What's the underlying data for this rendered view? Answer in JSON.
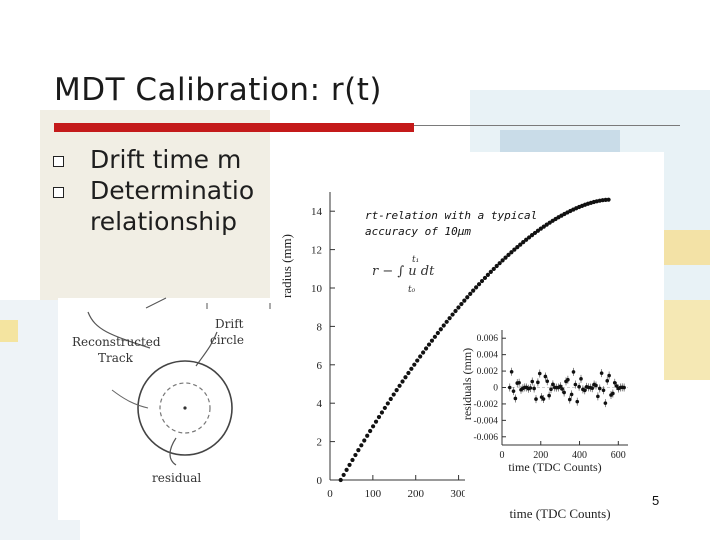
{
  "slide": {
    "title": "MDT Calibration: r(t)",
    "bullets": [
      {
        "text": "Drift time m"
      },
      {
        "text": "Determinatio",
        "continuation": "relationship"
      }
    ],
    "page_number": "5"
  },
  "diagram": {
    "reconstructed_track_label": [
      "Reconstructed",
      "Track"
    ],
    "drift_circle_label": [
      "Drift",
      "circle"
    ],
    "residual_label": "residual"
  },
  "chart_data": [
    {
      "type": "scatter",
      "title": "",
      "annotation": [
        "rt-relation with a typical",
        "accuracy of 10μm"
      ],
      "formula": "r − ∫ u dt",
      "formula_limits": {
        "upper": "t₁",
        "lower": "t₀"
      },
      "xlabel": "time (TDC Counts)",
      "ylabel": "radius (mm)",
      "xlim": [
        0,
        700
      ],
      "ylim": [
        0,
        15
      ],
      "xticks": [
        "0",
        "100",
        "200",
        "300",
        "400",
        "500",
        "600"
      ],
      "yticks": [
        "0",
        "2",
        "4",
        "6",
        "8",
        "10",
        "12",
        "14"
      ],
      "t0": 25,
      "t_max": 650,
      "r_max": 14.6,
      "n_points": 92
    },
    {
      "type": "scatter",
      "title": "",
      "xlabel": "time (TDC Counts)",
      "ylabel": "residuals (mm)",
      "xlim": [
        0,
        650
      ],
      "ylim": [
        -0.007,
        0.007
      ],
      "xticks": [
        "0",
        "200",
        "400",
        "600"
      ],
      "yticks": [
        "0.006",
        "0.004",
        "0.002",
        "0",
        "-0.002",
        "-0.004",
        "-0.006"
      ],
      "amplitude": 0.002,
      "n_points": 62
    }
  ]
}
